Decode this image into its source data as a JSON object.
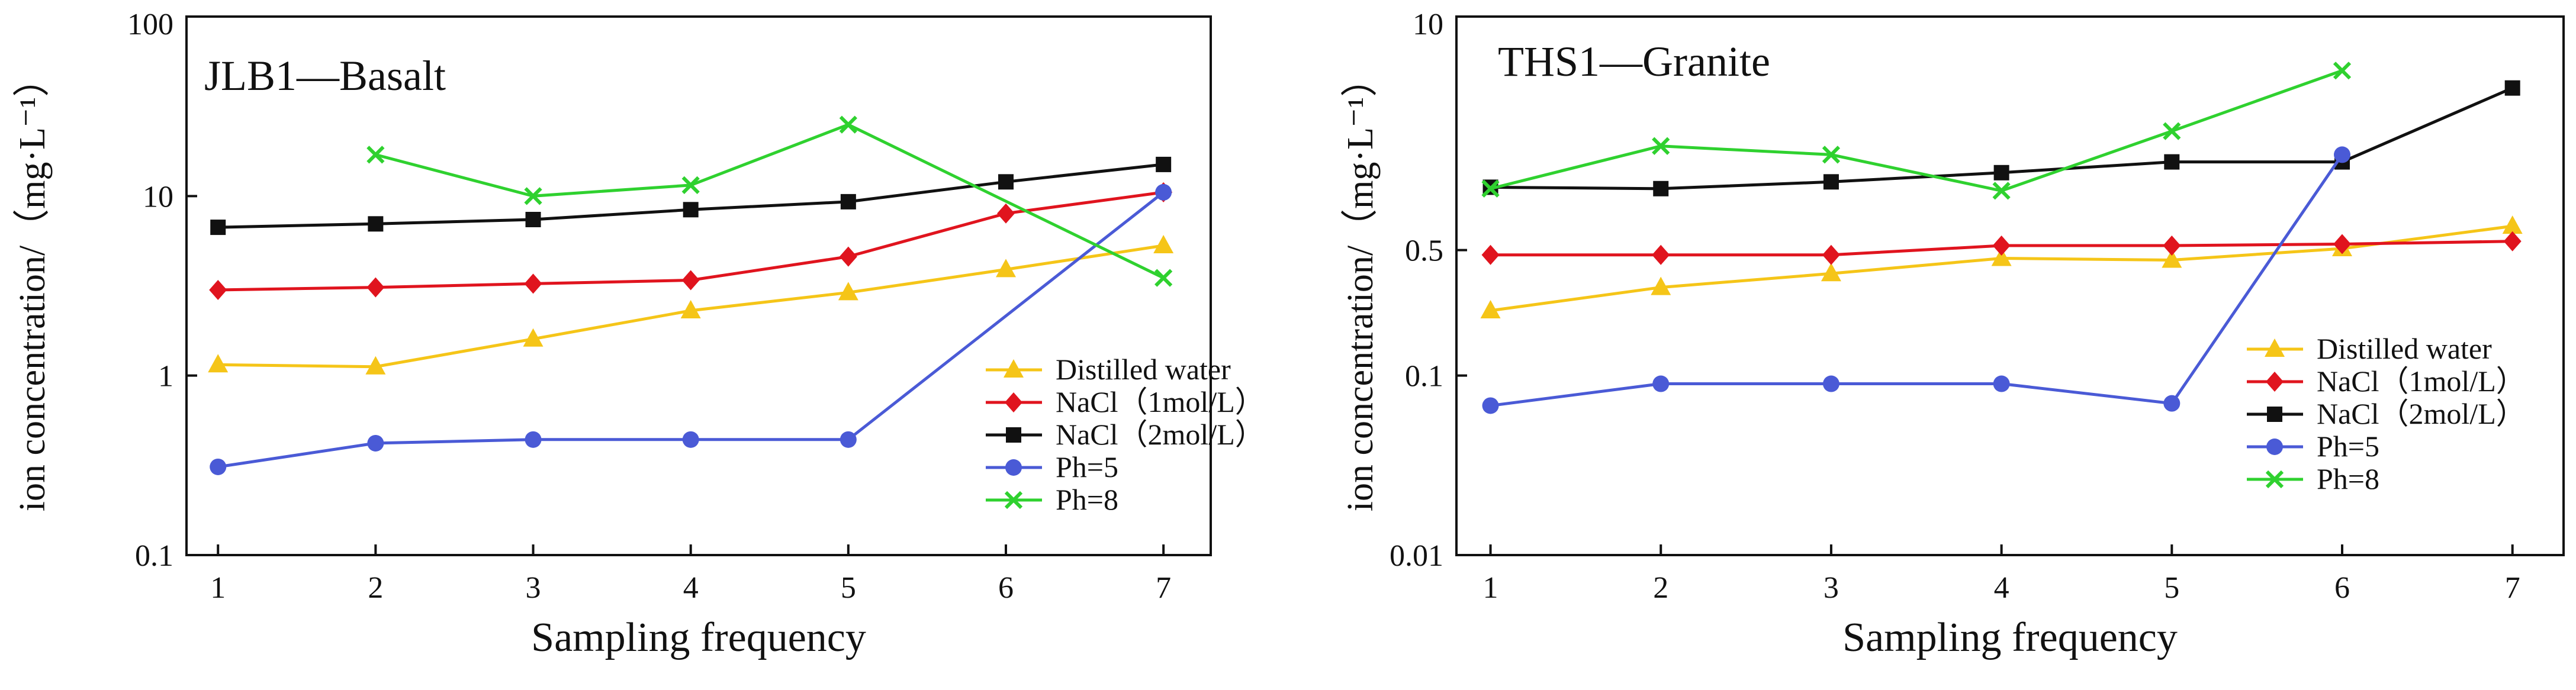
{
  "chart_data": [
    {
      "type": "line",
      "yscale": "log",
      "title": "JLB1—Basalt",
      "xlabel": "Sampling frequency",
      "ylabel": "ion concentration/（mg·L⁻¹）",
      "xlim": [
        0.8,
        7.3
      ],
      "ylim": [
        0.1,
        100
      ],
      "xticks": [
        "1",
        "2",
        "3",
        "4",
        "5",
        "6",
        "7"
      ],
      "yticks": [
        "0.1",
        "1",
        "10",
        "100"
      ],
      "legend_position": "right",
      "series": [
        {
          "name": "Distilled water",
          "color": "#f5c518",
          "marker": "triangle",
          "x": [
            1,
            2,
            3,
            4,
            5,
            6,
            7
          ],
          "y": [
            1.15,
            1.12,
            1.6,
            2.3,
            2.9,
            3.9,
            5.3
          ]
        },
        {
          "name": "NaCl（1mol/L）",
          "color": "#e0141e",
          "marker": "diamond",
          "x": [
            1,
            2,
            3,
            4,
            5,
            6,
            7
          ],
          "y": [
            3.0,
            3.1,
            3.25,
            3.4,
            4.6,
            8.0,
            10.5
          ]
        },
        {
          "name": "NaCl（2mol/L）",
          "color": "#111111",
          "marker": "square",
          "x": [
            1,
            2,
            3,
            4,
            5,
            6,
            7
          ],
          "y": [
            6.7,
            7.0,
            7.4,
            8.4,
            9.3,
            12.0,
            15.0
          ]
        },
        {
          "name": "Ph=5",
          "color": "#4a5ad6",
          "marker": "circle",
          "x": [
            1,
            2,
            3,
            4,
            5,
            7
          ],
          "y": [
            0.31,
            0.42,
            0.44,
            0.44,
            0.44,
            10.5
          ]
        },
        {
          "name": "Ph=8",
          "color": "#2fd12f",
          "marker": "x",
          "x": [
            2,
            3,
            4,
            5,
            7
          ],
          "y": [
            17.0,
            10.0,
            11.5,
            25.0,
            3.5
          ]
        }
      ]
    },
    {
      "type": "line",
      "yscale": "log",
      "title": "THS1—Granite",
      "xlabel": "Sampling frequency",
      "ylabel": "ion concentration/（mg·L⁻¹）",
      "xlim": [
        0.8,
        7.3
      ],
      "ylim": [
        0.01,
        10
      ],
      "xticks": [
        "1",
        "2",
        "3",
        "4",
        "5",
        "6",
        "7"
      ],
      "yticks": [
        "0.01",
        "0.1",
        "0.5",
        "10"
      ],
      "legend_position": "right",
      "series": [
        {
          "name": "Distilled water",
          "color": "#f5c518",
          "marker": "triangle",
          "x": [
            1,
            2,
            3,
            4,
            5,
            6,
            7
          ],
          "y": [
            0.23,
            0.31,
            0.37,
            0.45,
            0.44,
            0.51,
            0.68
          ]
        },
        {
          "name": "NaCl（1mol/L）",
          "color": "#e0141e",
          "marker": "diamond",
          "x": [
            1,
            2,
            3,
            4,
            5,
            6,
            7
          ],
          "y": [
            0.47,
            0.47,
            0.47,
            0.53,
            0.53,
            0.54,
            0.56
          ]
        },
        {
          "name": "NaCl（2mol/L）",
          "color": "#111111",
          "marker": "square",
          "x": [
            1,
            2,
            3,
            4,
            5,
            6,
            7
          ],
          "y": [
            1.12,
            1.1,
            1.2,
            1.35,
            1.55,
            1.55,
            4.0
          ]
        },
        {
          "name": "Ph=5",
          "color": "#4a5ad6",
          "marker": "circle",
          "x": [
            1,
            2,
            3,
            4,
            5,
            6
          ],
          "y": [
            0.068,
            0.09,
            0.09,
            0.09,
            0.07,
            1.7
          ]
        },
        {
          "name": "Ph=8",
          "color": "#2fd12f",
          "marker": "x",
          "x": [
            1,
            2,
            3,
            4,
            5,
            6
          ],
          "y": [
            1.1,
            1.9,
            1.7,
            1.07,
            2.3,
            5.0
          ]
        }
      ]
    }
  ]
}
